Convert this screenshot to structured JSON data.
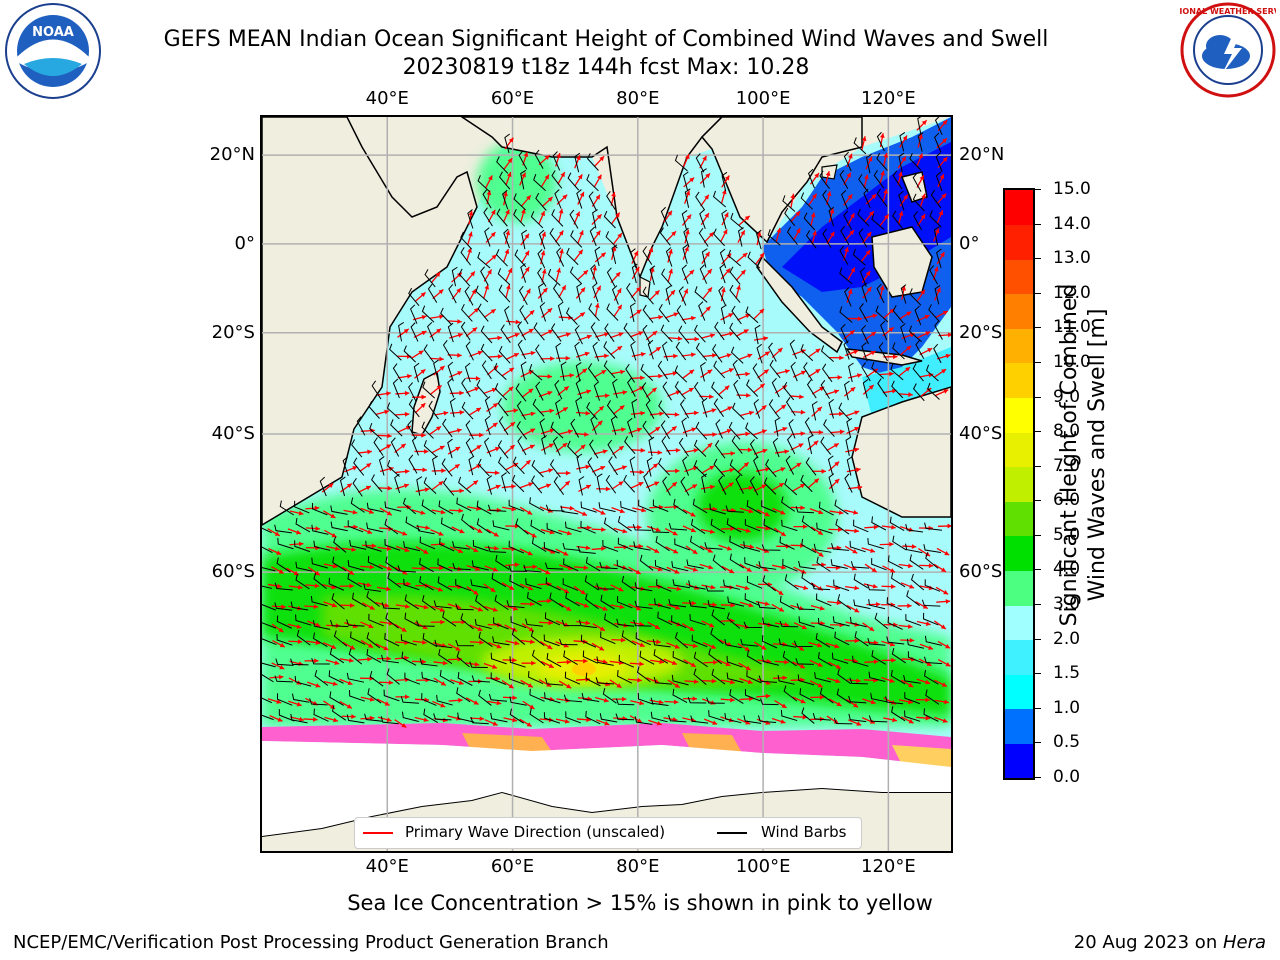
{
  "title": {
    "line1": "GEFS MEAN Indian Ocean Significant Height of Combined Wind Waves and Swell",
    "line2": "20230819 t18z 144h fcst   Max: 10.28"
  },
  "logos": {
    "left_name": "noaa-logo",
    "left_text": "NOAA",
    "right_name": "nws-logo",
    "right_text": "NATIONAL WEATHER SERVICE"
  },
  "map": {
    "lon_labels": [
      "40°E",
      "60°E",
      "80°E",
      "100°E",
      "120°E"
    ],
    "lon_values": [
      40,
      60,
      80,
      100,
      120
    ],
    "lat_labels": [
      "20°N",
      "0°",
      "20°S",
      "40°S",
      "60°S"
    ],
    "lat_values": [
      20,
      0,
      -20,
      -40,
      -60
    ],
    "lon_range": [
      20,
      130
    ],
    "lat_range": [
      -80,
      28
    ],
    "land_color": "#efeedf",
    "grid_color": "#b0b0b0"
  },
  "legend": {
    "wave_label": "Primary Wave Direction (unscaled)",
    "barb_label": "Wind Barbs",
    "wave_color": "#ff0000",
    "barb_color": "#000000"
  },
  "colorbar": {
    "ticks": [
      "0.0",
      "0.5",
      "1.0",
      "1.5",
      "2.0",
      "3.0",
      "4.0",
      "5.0",
      "6.0",
      "7.0",
      "8.0",
      "9.0",
      "10.0",
      "11.0",
      "12.0",
      "13.0",
      "14.0",
      "15.0"
    ],
    "colors": [
      "#0000ff",
      "#0070ff",
      "#00ffff",
      "#3ff0ff",
      "#a0ffff",
      "#4dff80",
      "#00e000",
      "#60e000",
      "#c0f000",
      "#e8f000",
      "#ffff00",
      "#ffd000",
      "#ffb000",
      "#ff8000",
      "#ff5000",
      "#ff2000",
      "#ff0000"
    ],
    "label_line1": "Significant Height of Combined",
    "label_line2": "Wind Waves and Swell [m]"
  },
  "caption": "Sea Ice Concentration > 15% is shown in pink to yellow",
  "footer": {
    "left": "NCEP/EMC/Verification Post Processing Product Generation Branch",
    "right_date": "20 Aug 2023 on ",
    "right_host": "Hera"
  }
}
